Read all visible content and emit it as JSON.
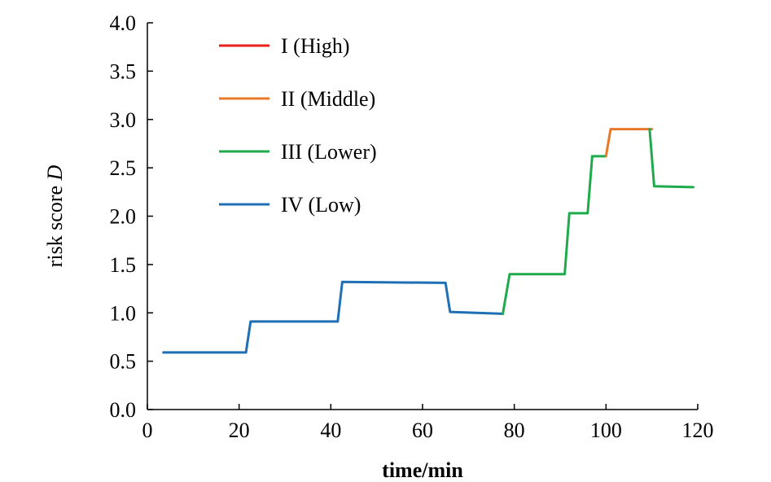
{
  "chart_data": {
    "type": "line",
    "title": "",
    "xlabel": "time/min",
    "ylabel_prefix": "risk score ",
    "ylabel_symbol": "D",
    "xlim": [
      0,
      120
    ],
    "ylim": [
      0,
      4.0
    ],
    "x_ticks": [
      0,
      20,
      40,
      60,
      80,
      100,
      120
    ],
    "y_ticks": [
      "0.0",
      "0.5",
      "1.0",
      "1.5",
      "2.0",
      "2.5",
      "3.0",
      "3.5",
      "4.0"
    ],
    "grid": false,
    "legend_position": "top-left",
    "legend": [
      {
        "label": "I (High)",
        "color": "#e8231e"
      },
      {
        "label": "II (Middle)",
        "color": "#e8782a"
      },
      {
        "label": "III (Lower)",
        "color": "#1faa4b"
      },
      {
        "label": "IV (Low)",
        "color": "#1f6fb5"
      }
    ],
    "series": [
      {
        "name": "IV (Low)",
        "color": "#1f6fb5",
        "points": [
          [
            3.5,
            0.59
          ],
          [
            21.5,
            0.59
          ],
          [
            22.5,
            0.91
          ],
          [
            41.5,
            0.91
          ],
          [
            42.5,
            1.32
          ],
          [
            65,
            1.31
          ],
          [
            66,
            1.01
          ],
          [
            77.5,
            0.99
          ]
        ]
      },
      {
        "name": "III (Lower)",
        "color": "#1faa4b",
        "points": [
          [
            77.5,
            0.99
          ],
          [
            79,
            1.4
          ],
          [
            91,
            1.4
          ],
          [
            92,
            2.03
          ],
          [
            96,
            2.03
          ],
          [
            97,
            2.62
          ],
          [
            100,
            2.62
          ]
        ]
      },
      {
        "name": "II (Middle)",
        "color": "#e8782a",
        "points": [
          [
            100,
            2.62
          ],
          [
            101,
            2.9
          ],
          [
            110,
            2.9
          ]
        ]
      },
      {
        "name": "III (Lower)",
        "color": "#1faa4b",
        "points": [
          [
            109.5,
            2.9
          ],
          [
            110.5,
            2.31
          ],
          [
            119,
            2.3
          ]
        ]
      }
    ]
  }
}
